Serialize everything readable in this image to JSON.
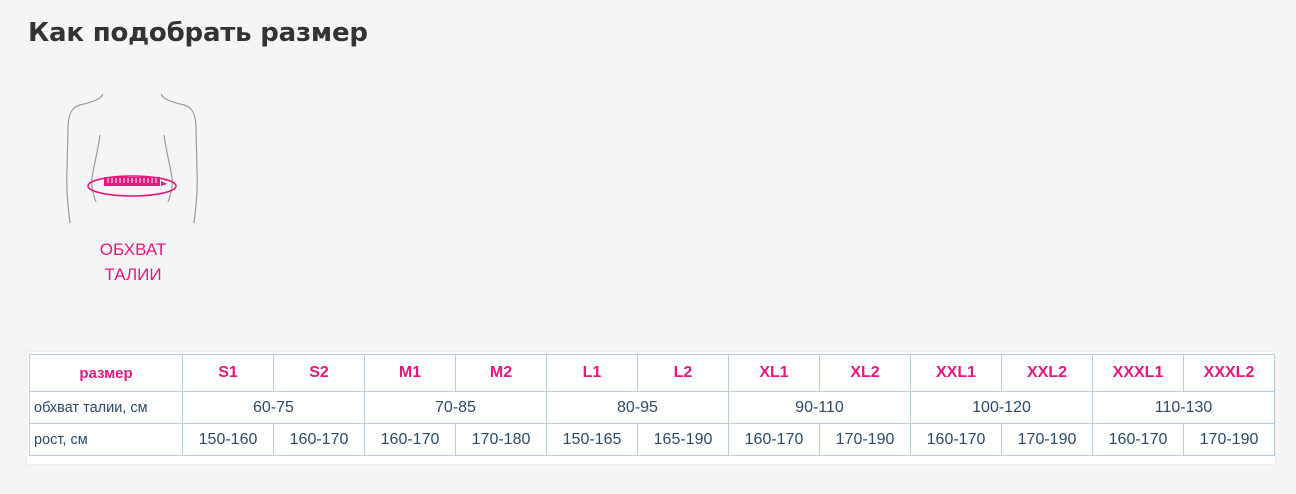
{
  "page": {
    "title": "Как подобрать размер"
  },
  "illustration": {
    "icon": "torso-waist-measurement-icon",
    "caption_line1": "ОБХВАТ",
    "caption_line2": "ТАЛИИ",
    "accent_color": "#e6177d",
    "outline_color": "#9a9a9a"
  },
  "size_table": {
    "header_label": "размер",
    "sizes": [
      "S1",
      "S2",
      "M1",
      "M2",
      "L1",
      "L2",
      "XL1",
      "XL2",
      "XXL1",
      "XXL2",
      "XXXL1",
      "XXXL2"
    ],
    "waist_label": "обхват талии, см",
    "waist_ranges": [
      "60-75",
      "70-85",
      "80-95",
      "90-110",
      "100-120",
      "110-130"
    ],
    "height_label": "рост, см",
    "height_ranges": [
      "150-160",
      "160-170",
      "160-170",
      "170-180",
      "150-165",
      "165-190",
      "160-170",
      "170-190",
      "160-170",
      "170-190",
      "160-170",
      "170-190"
    ],
    "border_color": "#b6cfe0",
    "size_color": "#e6177d",
    "text_color": "#2b4a6b"
  }
}
